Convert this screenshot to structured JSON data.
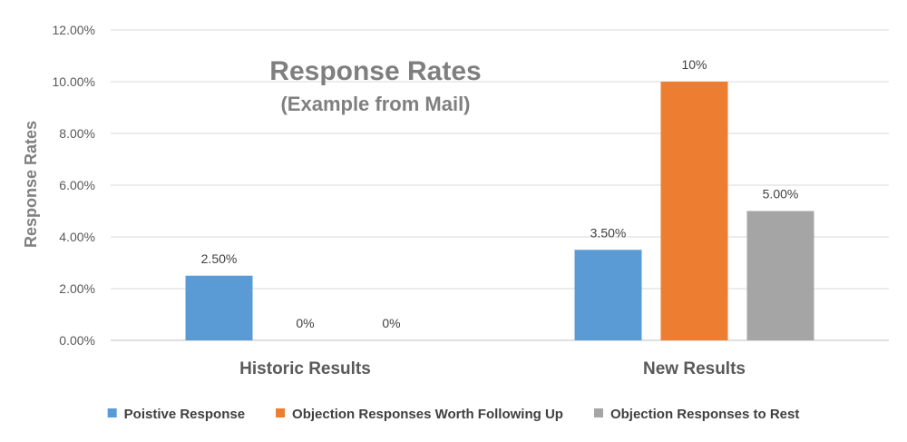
{
  "chart_data": {
    "type": "bar",
    "title": "Response Rates",
    "subtitle": "(Example from Mail)",
    "xlabel": "",
    "ylabel": "Response Rates",
    "ylim": [
      0,
      0.12
    ],
    "yticks": [
      0,
      0.02,
      0.04,
      0.06,
      0.08,
      0.1,
      0.12
    ],
    "ytick_labels": [
      "0.00%",
      "2.00%",
      "4.00%",
      "6.00%",
      "8.00%",
      "10.00%",
      "12.00%"
    ],
    "grid": true,
    "legend_position": "bottom",
    "categories": [
      "Historic Results",
      "New Results"
    ],
    "series": [
      {
        "name": "Poistive Response",
        "color": "#5b9bd5",
        "values": [
          0.025,
          0.035
        ],
        "labels": [
          "2.50%",
          "3.50%"
        ]
      },
      {
        "name": "Objection Responses Worth Following Up",
        "color": "#ed7d31",
        "values": [
          0,
          0.1
        ],
        "labels": [
          "0%",
          "10%"
        ]
      },
      {
        "name": "Objection Responses to Rest",
        "color": "#a5a5a5",
        "values": [
          0,
          0.05
        ],
        "labels": [
          "0%",
          "5.00%"
        ]
      }
    ]
  }
}
